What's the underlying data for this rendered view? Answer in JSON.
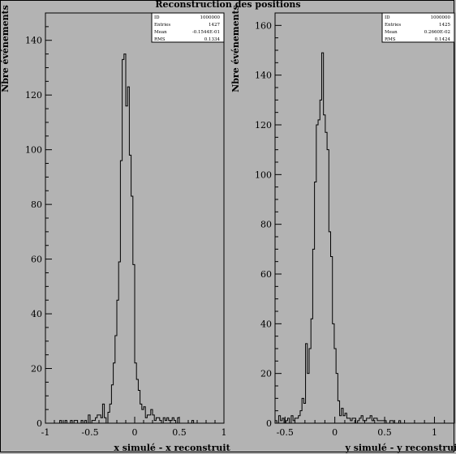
{
  "title": "Reconstruction des positions",
  "colors": {
    "background": "#b3b3b3",
    "line": "#000000",
    "statsbox": "#ffffff"
  },
  "chart_data": [
    {
      "type": "histogram",
      "xlabel": "x simulé - x reconstruit",
      "ylabel": "Nbre événements",
      "xlim": [
        -1.0,
        1.0
      ],
      "ylim": [
        0,
        150
      ],
      "x_ticks": [
        {
          "value": -1.0,
          "label": "-1"
        },
        {
          "value": -0.5,
          "label": "-0.5"
        },
        {
          "value": 0.0,
          "label": "0"
        },
        {
          "value": 0.5,
          "label": "0.5"
        },
        {
          "value": 1.0,
          "label": "1"
        }
      ],
      "y_ticks": [
        0,
        20,
        40,
        60,
        80,
        100,
        120,
        140
      ],
      "stats": [
        {
          "label": "ID",
          "value": "1000000"
        },
        {
          "label": "Entries",
          "value": "1427"
        },
        {
          "label": "Mean",
          "value": "-0.1544E-01"
        },
        {
          "label": "RMS",
          "value": "0.1334"
        }
      ],
      "bin_width": 0.02,
      "counts": [
        0,
        0,
        0,
        0,
        0,
        0,
        0,
        0,
        1,
        0,
        0,
        1,
        0,
        0,
        1,
        0,
        1,
        1,
        0,
        0,
        1,
        0,
        1,
        0,
        3,
        0,
        1,
        1,
        2,
        3,
        3,
        2,
        7,
        2,
        0,
        4,
        7,
        14,
        22,
        32,
        45,
        59,
        96,
        133,
        135,
        116,
        123,
        98,
        83,
        58,
        22,
        16,
        12,
        7,
        5,
        6,
        2,
        3,
        3,
        5,
        3,
        1,
        2,
        2,
        1,
        0,
        2,
        1,
        2,
        1,
        1,
        2,
        1,
        0,
        2,
        0,
        0,
        0,
        0,
        0,
        0,
        0,
        1,
        0,
        0,
        0,
        0,
        0,
        0,
        0,
        0,
        0,
        0,
        0,
        0,
        0,
        0,
        0,
        0,
        0
      ]
    },
    {
      "type": "histogram",
      "xlabel": "y simulé - y reconstruit",
      "ylabel": "Nbre événements",
      "xlim": [
        -0.6,
        1.2
      ],
      "ylim": [
        0,
        165
      ],
      "x_ticks": [
        {
          "value": -0.5,
          "label": "-0.5"
        },
        {
          "value": 0.0,
          "label": "0"
        },
        {
          "value": 0.5,
          "label": "0.5"
        },
        {
          "value": 1.0,
          "label": "1"
        }
      ],
      "y_ticks": [
        0,
        20,
        40,
        60,
        80,
        100,
        120,
        140,
        160
      ],
      "stats": [
        {
          "label": "ID",
          "value": "1000000"
        },
        {
          "label": "Entries",
          "value": "1425"
        },
        {
          "label": "Mean",
          "value": "0.2660E-02"
        },
        {
          "label": "RMS",
          "value": "0.1424"
        }
      ],
      "bin_width": 0.018,
      "counts": [
        1,
        0,
        3,
        1,
        2,
        0,
        1,
        2,
        0,
        3,
        1,
        2,
        2,
        3,
        5,
        10,
        8,
        32,
        20,
        30,
        42,
        70,
        97,
        120,
        122,
        130,
        149,
        124,
        117,
        110,
        77,
        67,
        40,
        30,
        20,
        9,
        3,
        6,
        3,
        4,
        2,
        2,
        1,
        2,
        2,
        0,
        1,
        2,
        3,
        1,
        1,
        2,
        2,
        3,
        1,
        2,
        2,
        1,
        1,
        1,
        1,
        1,
        0,
        0,
        1,
        1,
        0,
        0,
        0,
        1,
        0,
        0,
        0,
        0,
        0,
        0,
        0,
        0,
        0,
        0,
        0,
        0,
        0,
        0,
        0,
        0,
        0,
        0,
        0,
        0,
        0,
        0,
        0,
        0,
        0,
        0,
        0,
        0,
        0,
        0
      ]
    }
  ]
}
